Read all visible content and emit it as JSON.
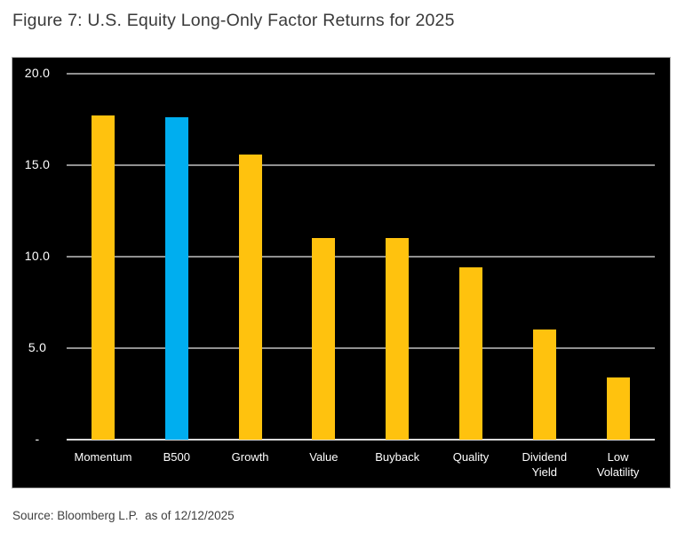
{
  "figure": {
    "title": "Figure 7: U.S. Equity Long-Only Factor Returns for 2025",
    "source": "Source: Bloomberg L.P.  as of 12/12/2025"
  },
  "chart_data": {
    "type": "bar",
    "title": "Figure 7: U.S. Equity Long-Only Factor Returns for 2025",
    "categories": [
      "Momentum",
      "B500",
      "Growth",
      "Value",
      "Buyback",
      "Quality",
      "Dividend\nYield",
      "Low\nVolatility"
    ],
    "values": [
      17.7,
      17.6,
      15.6,
      11.0,
      11.0,
      9.4,
      6.0,
      3.4
    ],
    "highlight_index": 1,
    "xlabel": "",
    "ylabel": "",
    "ylim": [
      0,
      20
    ],
    "grid": true,
    "legend": "none",
    "yticks": [
      {
        "value": 20,
        "label": "20.0"
      },
      {
        "value": 15,
        "label": "15.0"
      },
      {
        "value": 10,
        "label": "10.0"
      },
      {
        "value": 5,
        "label": "5.0"
      },
      {
        "value": 0,
        "label": "-"
      }
    ],
    "colors": {
      "bar": "#FFC20E",
      "highlight": "#00AEEF",
      "panel_background": "#000000",
      "panel_border": "#b3b3b3",
      "grid": "#909090",
      "baseline": "#d9d9d9",
      "tick_text": "#ffffff",
      "category_text": "#ffffff",
      "title_text": "#3a3a3a",
      "source_text": "#404040"
    }
  }
}
